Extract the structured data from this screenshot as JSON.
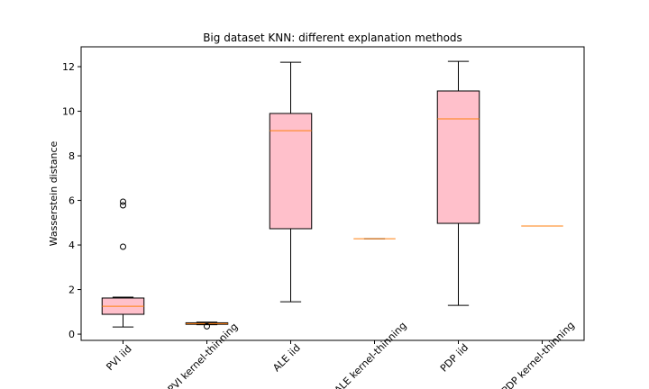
{
  "chart_data": {
    "type": "box",
    "title": "Big dataset KNN: different explanation methods",
    "y_label": "Wasserstein distance",
    "categories": [
      "PVI iid",
      "PVI kernel-thinning",
      "ALE iid",
      "ALE kernel-thinning",
      "PDP iid",
      "PDP kernel-thinning"
    ],
    "boxes": [
      {
        "min": 0.32,
        "q1": 0.89,
        "median": 1.25,
        "q3": 1.62,
        "max": 1.66,
        "outliers": [
          3.92,
          5.78,
          5.94
        ]
      },
      {
        "min": 0.42,
        "q1": 0.44,
        "median": 0.47,
        "q3": 0.51,
        "max": 0.54,
        "outliers": [
          0.35
        ]
      },
      {
        "min": 1.45,
        "q1": 4.73,
        "median": 9.13,
        "q3": 9.9,
        "max": 12.2,
        "outliers": []
      },
      {
        "min": 4.28,
        "q1": 4.28,
        "median": 4.28,
        "q3": 4.28,
        "max": 4.28,
        "outliers": []
      },
      {
        "min": 1.29,
        "q1": 4.97,
        "median": 9.66,
        "q3": 10.91,
        "max": 12.24,
        "outliers": []
      },
      {
        "min": 4.85,
        "q1": 4.85,
        "median": 4.85,
        "q3": 4.85,
        "max": 4.85,
        "outliers": []
      }
    ],
    "color": "#ffc0cb",
    "median_color": "#ff7f0e",
    "ylim": [
      -0.28,
      12.89
    ],
    "yticks": [
      0,
      2,
      4,
      6,
      8,
      10,
      12
    ],
    "grid": false
  }
}
